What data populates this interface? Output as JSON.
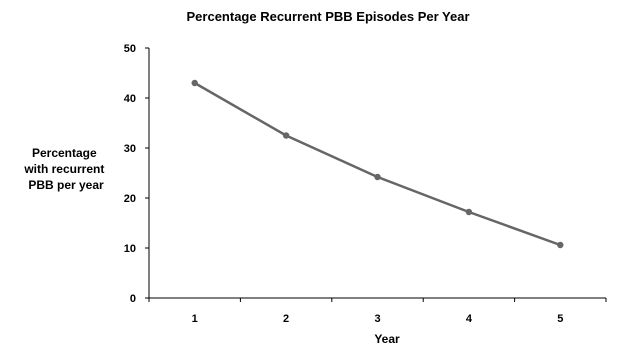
{
  "chart_data": {
    "type": "line",
    "title": "Percentage Recurrent PBB Episodes Per Year",
    "xlabel": "Year",
    "ylabel_lines": [
      "Percentage",
      "with recurrent",
      "PBB per year"
    ],
    "categories": [
      "1",
      "2",
      "3",
      "4",
      "5"
    ],
    "series": [
      {
        "values": [
          43,
          32.5,
          24.2,
          17.2,
          10.6
        ]
      }
    ],
    "ylim": [
      0,
      50
    ],
    "yticks": [
      0,
      10,
      20,
      30,
      40,
      50
    ],
    "grid": false,
    "legend": "none",
    "colors": {
      "line": "#666666",
      "marker": "#666666",
      "axis": "#000000"
    }
  }
}
